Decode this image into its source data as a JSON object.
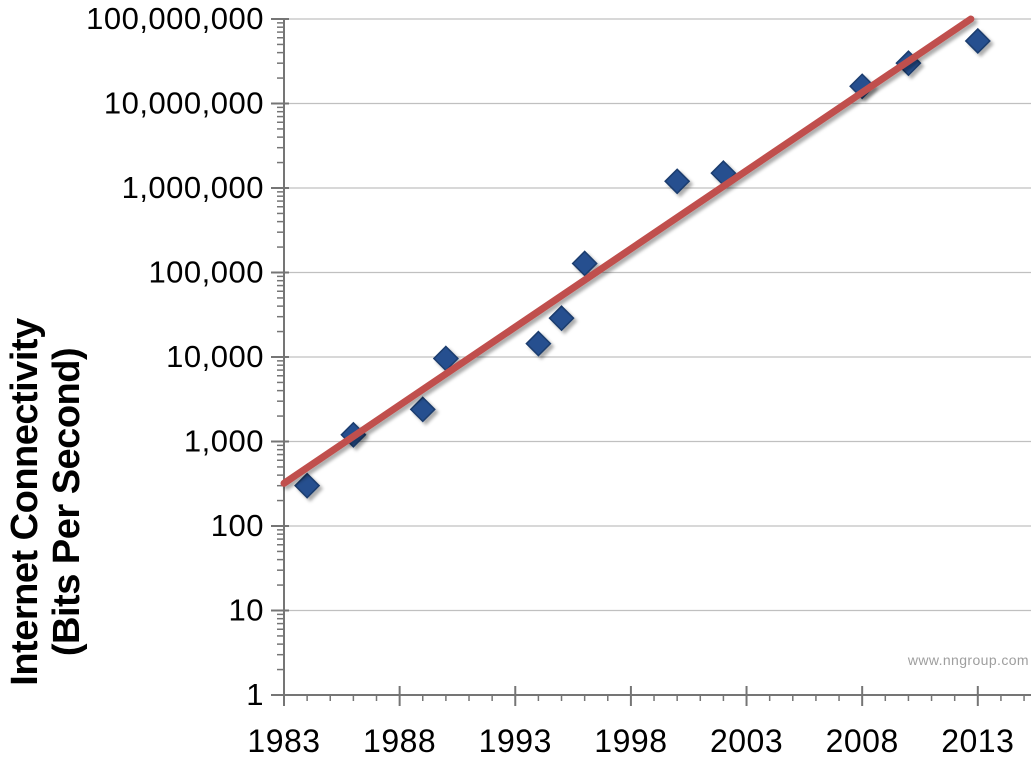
{
  "watermark": "www.nngroup.com",
  "y_axis_title": {
    "line1": "Internet Connectivity",
    "line2": "(Bits Per Second)"
  },
  "chart_data": {
    "type": "scatter",
    "title": "",
    "xlabel": "",
    "ylabel": "Internet Connectivity (Bits Per Second)",
    "grid": "horizontal-only",
    "legend": "none",
    "x_axis": {
      "range": [
        1983,
        2015.3
      ],
      "tick_years": [
        1983,
        1988,
        1993,
        1998,
        2003,
        2008,
        2013
      ],
      "tick_labels": [
        "1983",
        "1988",
        "1993",
        "1998",
        "2003",
        "2008",
        "2013"
      ],
      "minor_tick_start": 1984,
      "minor_tick_end": 2015
    },
    "y_axis": {
      "scale": "log",
      "range": [
        1,
        100000000
      ],
      "tick_values": [
        1,
        10,
        100,
        1000,
        10000,
        100000,
        1000000,
        10000000,
        100000000
      ],
      "tick_labels": [
        "1",
        "10",
        "100",
        "1,000",
        "10,000",
        "100,000",
        "1,000,000",
        "10,000,000",
        "100,000,000"
      ],
      "minor_ticks": "log-2-through-9"
    },
    "series": [
      {
        "name": "observed-connectivity",
        "type": "scatter",
        "marker": "diamond",
        "points": [
          {
            "year": 1984,
            "bps": 300
          },
          {
            "year": 1986,
            "bps": 1200
          },
          {
            "year": 1989,
            "bps": 2400
          },
          {
            "year": 1990,
            "bps": 9600
          },
          {
            "year": 1994,
            "bps": 14400
          },
          {
            "year": 1995,
            "bps": 28800
          },
          {
            "year": 1996,
            "bps": 128000
          },
          {
            "year": 2000,
            "bps": 1200000
          },
          {
            "year": 2002,
            "bps": 1500000
          },
          {
            "year": 2008,
            "bps": 16000000
          },
          {
            "year": 2010,
            "bps": 30000000
          },
          {
            "year": 2013,
            "bps": 55000000
          }
        ]
      },
      {
        "name": "growth-trend-line",
        "type": "line",
        "points": [
          {
            "year": 1983.0,
            "bps": 320
          },
          {
            "year": 2012.7,
            "bps": 100000000
          }
        ]
      }
    ],
    "colors": {
      "marker_fill": "#254F8F",
      "marker_stroke": "#1A3C6E",
      "trend_line": "#C0504D",
      "gridline": "#C0C0C0",
      "axis": "#757575",
      "tick_text": "#000000",
      "watermark_text": "#9E9E9E"
    }
  }
}
